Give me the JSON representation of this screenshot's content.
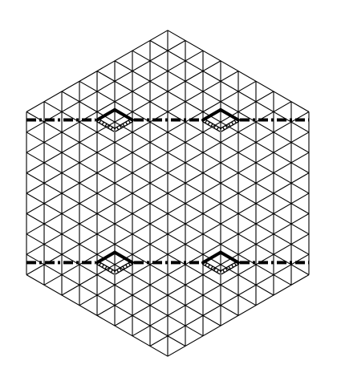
{
  "figure": {
    "kind": "hexagonal triangular lattice",
    "triangles_per_side": 8,
    "colors": {
      "background": "#ffffff",
      "lattice": "#000000",
      "dash_dot_line": "#000000",
      "diamond_outline": "#000000",
      "diamond_hatch": "#000000"
    },
    "line_styles": {
      "horizontal_guides": "dash-dot",
      "diamond_upper_edges": "solid bold",
      "diamond_lower_edges": "ladder-hatched"
    },
    "marked_rows": 2,
    "diamonds_per_row": 2
  }
}
